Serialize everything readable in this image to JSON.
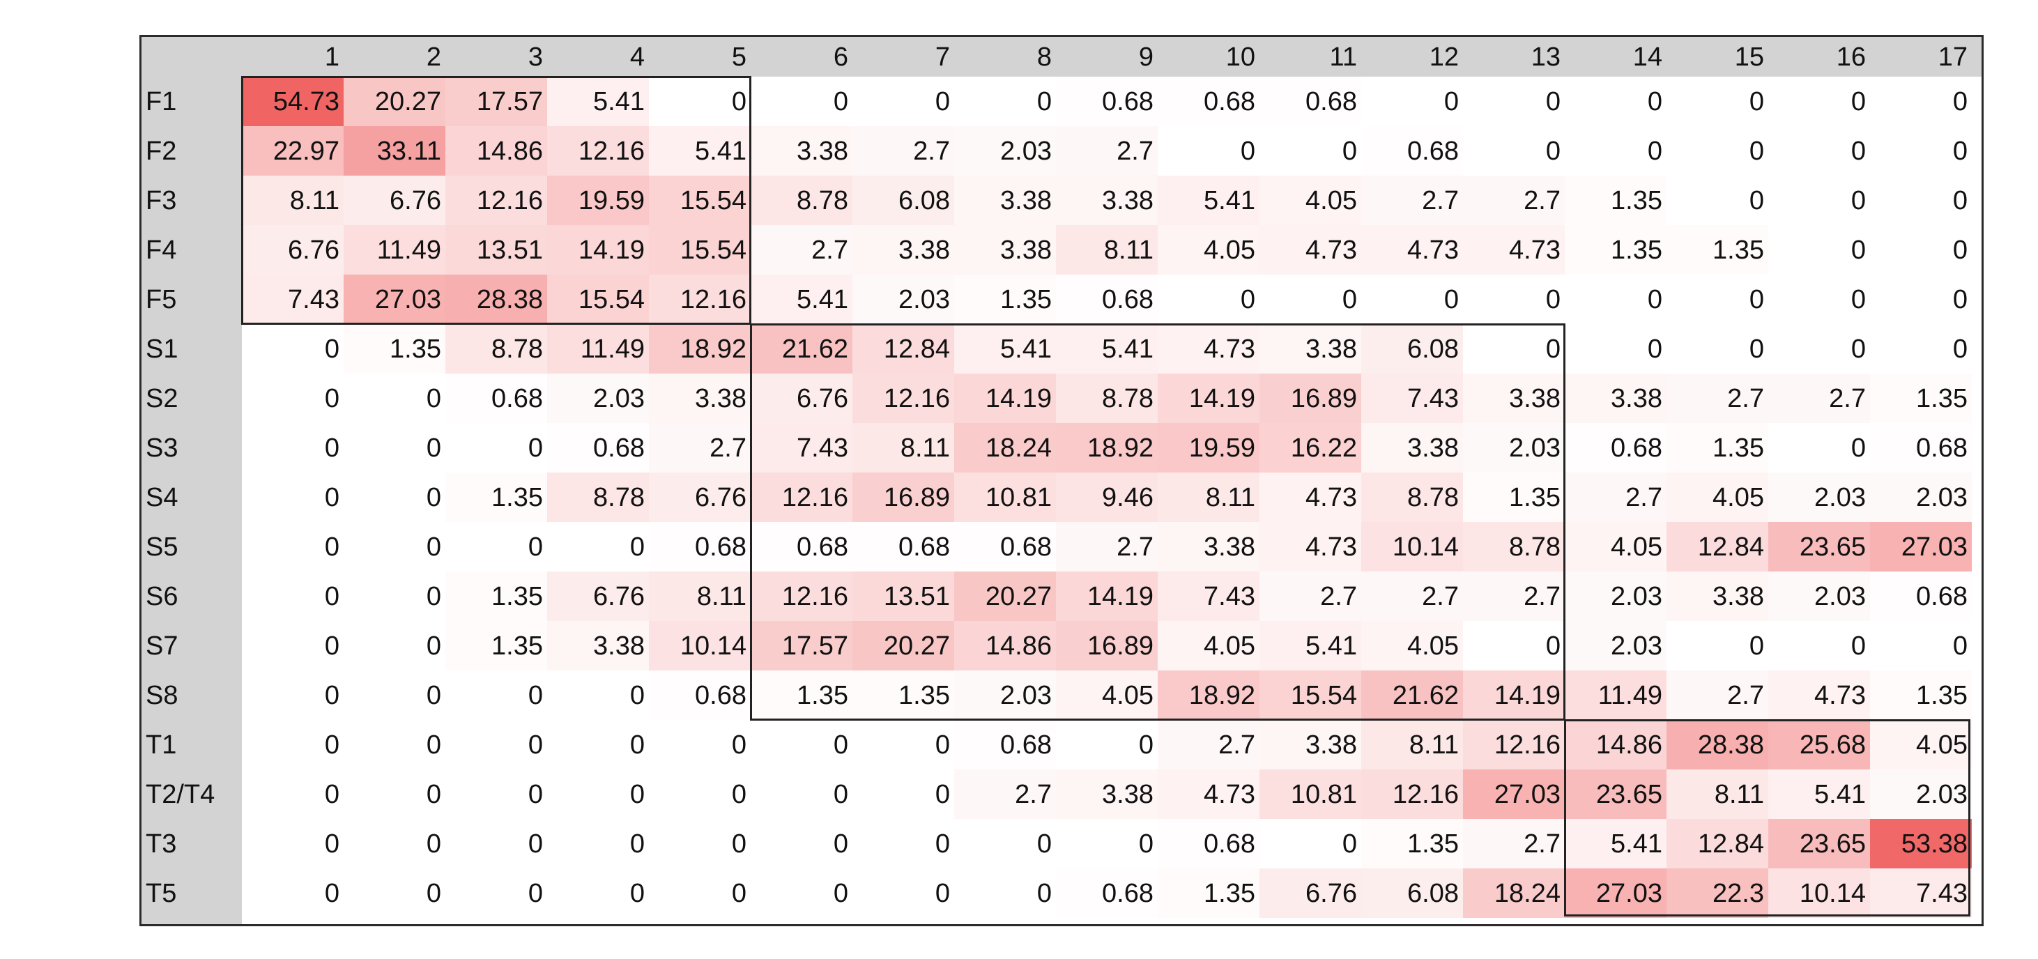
{
  "chart_data": {
    "type": "heatmap",
    "color_scale": {
      "low": "#ffffff",
      "high": "#f06464"
    },
    "x_labels": [
      "1",
      "2",
      "3",
      "4",
      "5",
      "6",
      "7",
      "8",
      "9",
      "10",
      "11",
      "12",
      "13",
      "14",
      "15",
      "16",
      "17"
    ],
    "y_labels": [
      "F1",
      "F2",
      "F3",
      "F4",
      "F5",
      "S1",
      "S2",
      "S3",
      "S4",
      "S5",
      "S6",
      "S7",
      "S8",
      "T1",
      "T2/T4",
      "T3",
      "T5"
    ],
    "values": [
      [
        "54.73",
        "20.27",
        "17.57",
        "5.41",
        "0",
        "0",
        "0",
        "0",
        "0.68",
        "0.68",
        "0.68",
        "0",
        "0",
        "0",
        "0",
        "0",
        "0"
      ],
      [
        "22.97",
        "33.11",
        "14.86",
        "12.16",
        "5.41",
        "3.38",
        "2.7",
        "2.03",
        "2.7",
        "0",
        "0",
        "0.68",
        "0",
        "0",
        "0",
        "0",
        "0"
      ],
      [
        "8.11",
        "6.76",
        "12.16",
        "19.59",
        "15.54",
        "8.78",
        "6.08",
        "3.38",
        "3.38",
        "5.41",
        "4.05",
        "2.7",
        "2.7",
        "1.35",
        "0",
        "0",
        "0"
      ],
      [
        "6.76",
        "11.49",
        "13.51",
        "14.19",
        "15.54",
        "2.7",
        "3.38",
        "3.38",
        "8.11",
        "4.05",
        "4.73",
        "4.73",
        "4.73",
        "1.35",
        "1.35",
        "0",
        "0"
      ],
      [
        "7.43",
        "27.03",
        "28.38",
        "15.54",
        "12.16",
        "5.41",
        "2.03",
        "1.35",
        "0.68",
        "0",
        "0",
        "0",
        "0",
        "0",
        "0",
        "0",
        "0"
      ],
      [
        "0",
        "1.35",
        "8.78",
        "11.49",
        "18.92",
        "21.62",
        "12.84",
        "5.41",
        "5.41",
        "4.73",
        "3.38",
        "6.08",
        "0",
        "0",
        "0",
        "0",
        "0"
      ],
      [
        "0",
        "0",
        "0.68",
        "2.03",
        "3.38",
        "6.76",
        "12.16",
        "14.19",
        "8.78",
        "14.19",
        "16.89",
        "7.43",
        "3.38",
        "3.38",
        "2.7",
        "2.7",
        "1.35"
      ],
      [
        "0",
        "0",
        "0",
        "0.68",
        "2.7",
        "7.43",
        "8.11",
        "18.24",
        "18.92",
        "19.59",
        "16.22",
        "3.38",
        "2.03",
        "0.68",
        "1.35",
        "0",
        "0.68"
      ],
      [
        "0",
        "0",
        "1.35",
        "8.78",
        "6.76",
        "12.16",
        "16.89",
        "10.81",
        "9.46",
        "8.11",
        "4.73",
        "8.78",
        "1.35",
        "2.7",
        "4.05",
        "2.03",
        "2.03"
      ],
      [
        "0",
        "0",
        "0",
        "0",
        "0.68",
        "0.68",
        "0.68",
        "0.68",
        "2.7",
        "3.38",
        "4.73",
        "10.14",
        "8.78",
        "4.05",
        "12.84",
        "23.65",
        "27.03"
      ],
      [
        "0",
        "0",
        "1.35",
        "6.76",
        "8.11",
        "12.16",
        "13.51",
        "20.27",
        "14.19",
        "7.43",
        "2.7",
        "2.7",
        "2.7",
        "2.03",
        "3.38",
        "2.03",
        "0.68"
      ],
      [
        "0",
        "0",
        "1.35",
        "3.38",
        "10.14",
        "17.57",
        "20.27",
        "14.86",
        "16.89",
        "4.05",
        "5.41",
        "4.05",
        "0",
        "2.03",
        "0",
        "0",
        "0"
      ],
      [
        "0",
        "0",
        "0",
        "0",
        "0.68",
        "1.35",
        "1.35",
        "2.03",
        "4.05",
        "18.92",
        "15.54",
        "21.62",
        "14.19",
        "11.49",
        "2.7",
        "4.73",
        "1.35"
      ],
      [
        "0",
        "0",
        "0",
        "0",
        "0",
        "0",
        "0",
        "0.68",
        "0",
        "2.7",
        "3.38",
        "8.11",
        "12.16",
        "14.86",
        "28.38",
        "25.68",
        "4.05"
      ],
      [
        "0",
        "0",
        "0",
        "0",
        "0",
        "0",
        "0",
        "2.7",
        "3.38",
        "4.73",
        "10.81",
        "12.16",
        "27.03",
        "23.65",
        "8.11",
        "5.41",
        "2.03"
      ],
      [
        "0",
        "0",
        "0",
        "0",
        "0",
        "0",
        "0",
        "0",
        "0",
        "0.68",
        "0",
        "1.35",
        "2.7",
        "5.41",
        "12.84",
        "23.65",
        "53.38"
      ],
      [
        "0",
        "0",
        "0",
        "0",
        "0",
        "0",
        "0",
        "0",
        "0.68",
        "1.35",
        "6.76",
        "6.08",
        "18.24",
        "27.03",
        "22.3",
        "10.14",
        "7.43"
      ]
    ],
    "groups": [
      {
        "rows": [
          0,
          4
        ],
        "cols": [
          0,
          4
        ]
      },
      {
        "rows": [
          5,
          12
        ],
        "cols": [
          5,
          12
        ]
      },
      {
        "rows": [
          13,
          16
        ],
        "cols": [
          13,
          16
        ]
      }
    ]
  }
}
